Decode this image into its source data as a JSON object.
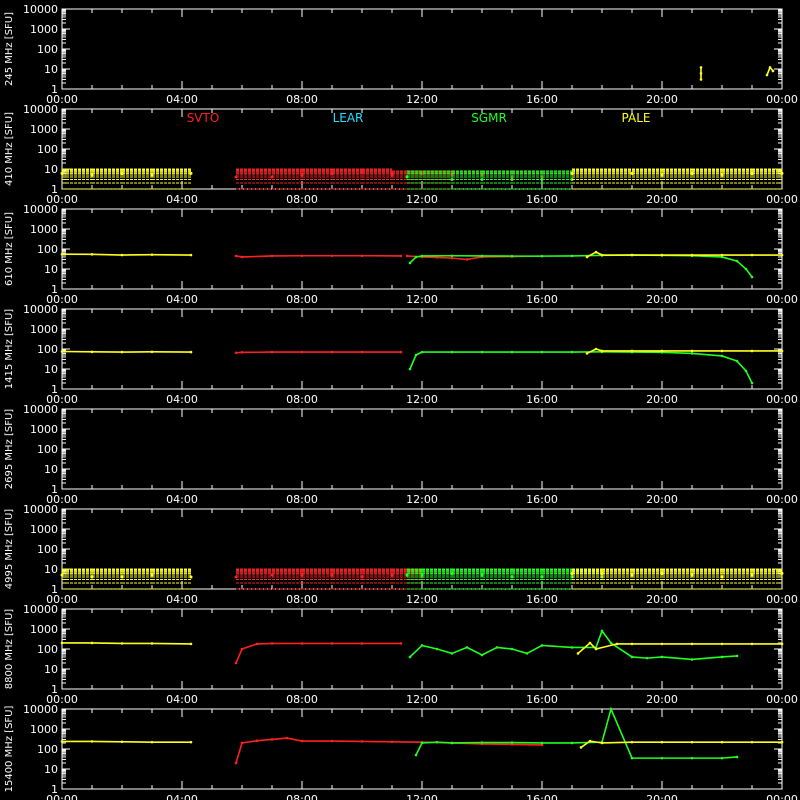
{
  "chart_data": {
    "type": "scatter",
    "x_ticks": [
      "00:00",
      "04:00",
      "08:00",
      "12:00",
      "16:00",
      "20:00",
      "00:00"
    ],
    "y_ticks": [
      "1",
      "10",
      "100",
      "1000",
      "10000"
    ],
    "ylim": [
      1,
      10000
    ],
    "y_scale": "log",
    "xlim_hours": [
      0,
      24
    ],
    "legend": [
      {
        "name": "SVTO",
        "color": "#ff2020"
      },
      {
        "name": "LEAR",
        "color": "#20e0ff"
      },
      {
        "name": "SGMR",
        "color": "#20ff20"
      },
      {
        "name": "PALE",
        "color": "#ffff20"
      }
    ],
    "panels": [
      {
        "ylabel": "245 MHz [SFU]",
        "segments": [
          {
            "station": "PALE",
            "x": [
              21.3,
              21.3,
              21.3
            ],
            "y": [
              3,
              6,
              12
            ]
          },
          {
            "station": "PALE",
            "x": [
              23.5,
              23.6,
              23.7
            ],
            "y": [
              5,
              12,
              8
            ]
          }
        ]
      },
      {
        "ylabel": "410 MHz [SFU]",
        "show_legend": true,
        "segments": [
          {
            "station": "PALE",
            "x": [
              0,
              1,
              2,
              3,
              4.3
            ],
            "y": [
              6,
              5,
              6,
              5,
              6
            ],
            "band": [
              1,
              10
            ]
          },
          {
            "station": "SVTO",
            "x": [
              5.8,
              7,
              8,
              9,
              10,
              11
            ],
            "y": [
              4,
              4,
              5,
              6,
              7,
              6
            ],
            "band": [
              1,
              10
            ]
          },
          {
            "station": "SVTO",
            "x": [
              11,
              12,
              13,
              14,
              15,
              16
            ],
            "y": [
              5,
              6,
              5,
              5,
              4,
              4
            ],
            "band": [
              1,
              8
            ]
          },
          {
            "station": "SGMR",
            "x": [
              11.5,
              13,
              14,
              15,
              16,
              17
            ],
            "y": [
              4,
              3,
              3,
              3,
              3,
              3
            ],
            "band": [
              1,
              8
            ]
          },
          {
            "station": "PALE",
            "x": [
              17,
              19,
              20,
              21,
              22,
              23,
              24
            ],
            "y": [
              6,
              6,
              5,
              6,
              5,
              6,
              6
            ],
            "band": [
              1,
              10
            ]
          }
        ]
      },
      {
        "ylabel": "610 MHz [SFU]",
        "segments": [
          {
            "station": "PALE",
            "x": [
              0,
              1,
              2,
              3,
              4.3
            ],
            "y": [
              55,
              54,
              50,
              52,
              50
            ]
          },
          {
            "station": "SVTO",
            "x": [
              5.8,
              6,
              7,
              8,
              9,
              10,
              11.3
            ],
            "y": [
              45,
              40,
              45,
              46,
              46,
              46,
              45
            ]
          },
          {
            "station": "SVTO",
            "x": [
              11.5,
              12,
              12.5,
              13,
              13.5,
              14,
              15,
              16
            ],
            "y": [
              45,
              40,
              38,
              35,
              30,
              40,
              42,
              44
            ]
          },
          {
            "station": "SGMR",
            "x": [
              11.6,
              11.8,
              12,
              13,
              14,
              15,
              16,
              17,
              18,
              19,
              20,
              21,
              22,
              22.5,
              22.8,
              23
            ],
            "y": [
              20,
              40,
              45,
              46,
              45,
              44,
              44,
              45,
              48,
              50,
              48,
              46,
              40,
              25,
              10,
              4
            ]
          },
          {
            "station": "PALE",
            "x": [
              17.5,
              17.8,
              18,
              19,
              20,
              21,
              22,
              23,
              24
            ],
            "y": [
              40,
              70,
              50,
              50,
              50,
              50,
              50,
              50,
              50
            ]
          }
        ]
      },
      {
        "ylabel": "1415 MHz [SFU]",
        "segments": [
          {
            "station": "PALE",
            "x": [
              0,
              1,
              2,
              3,
              4.3
            ],
            "y": [
              75,
              72,
              70,
              72,
              70
            ]
          },
          {
            "station": "SVTO",
            "x": [
              5.8,
              6,
              7,
              8,
              9,
              10,
              11.3
            ],
            "y": [
              65,
              68,
              70,
              70,
              70,
              70,
              70
            ]
          },
          {
            "station": "SGMR",
            "x": [
              11.6,
              11.8,
              12,
              13,
              14,
              15,
              16,
              17,
              18,
              19,
              20,
              21,
              22,
              22.5,
              22.8,
              23
            ],
            "y": [
              10,
              50,
              70,
              70,
              70,
              70,
              70,
              70,
              72,
              70,
              68,
              60,
              45,
              25,
              8,
              2
            ]
          },
          {
            "station": "PALE",
            "x": [
              17.5,
              17.8,
              18,
              19,
              20,
              21,
              22,
              23,
              24
            ],
            "y": [
              60,
              100,
              80,
              80,
              80,
              80,
              80,
              80,
              80
            ]
          }
        ]
      },
      {
        "ylabel": "2695 MHz [SFU]",
        "segments": []
      },
      {
        "ylabel": "4995 MHz [SFU]",
        "segments": [
          {
            "station": "PALE",
            "x": [
              0,
              1,
              2,
              3,
              4.3
            ],
            "y": [
              5,
              4,
              4,
              5,
              4
            ],
            "band": [
              1,
              10
            ]
          },
          {
            "station": "SVTO",
            "x": [
              5.8,
              7,
              8,
              9,
              10,
              11,
              12
            ],
            "y": [
              4,
              5,
              5,
              5,
              4,
              5,
              4
            ],
            "band": [
              1,
              10
            ]
          },
          {
            "station": "SGMR",
            "x": [
              11.5,
              12,
              13,
              14,
              15,
              16,
              17,
              18
            ],
            "y": [
              5,
              5,
              6,
              5,
              4,
              4,
              4,
              4
            ],
            "band": [
              1,
              10
            ]
          },
          {
            "station": "PALE",
            "x": [
              17,
              18,
              19,
              20,
              21,
              22,
              23,
              24
            ],
            "y": [
              6,
              6,
              5,
              6,
              5,
              4,
              5,
              6
            ],
            "band": [
              1,
              10
            ]
          }
        ]
      },
      {
        "ylabel": "8800 MHz [SFU]",
        "segments": [
          {
            "station": "PALE",
            "x": [
              0,
              1,
              2,
              3,
              4.3
            ],
            "y": [
              200,
              200,
              190,
              190,
              180
            ]
          },
          {
            "station": "SVTO",
            "x": [
              5.8,
              6,
              6.5,
              7,
              8,
              9,
              10,
              11.3
            ],
            "y": [
              20,
              100,
              180,
              190,
              190,
              190,
              190,
              190
            ]
          },
          {
            "station": "SGMR",
            "x": [
              11.6,
              12,
              12.5,
              13,
              13.5,
              14,
              14.5,
              15,
              15.5,
              16,
              17,
              17.8,
              18,
              18.3,
              19,
              19.5,
              20,
              21,
              22,
              22.5
            ],
            "y": [
              40,
              150,
              100,
              60,
              120,
              50,
              120,
              100,
              60,
              150,
              120,
              120,
              800,
              200,
              40,
              35,
              40,
              30,
              40,
              45
            ]
          },
          {
            "station": "PALE",
            "x": [
              17.2,
              17.6,
              17.8,
              18.5,
              19,
              20,
              21,
              22,
              23,
              24
            ],
            "y": [
              60,
              200,
              100,
              180,
              180,
              180,
              180,
              180,
              180,
              180
            ]
          }
        ]
      },
      {
        "ylabel": "15400 MHz [SFU]",
        "segments": [
          {
            "station": "PALE",
            "x": [
              0,
              1,
              2,
              3,
              4.3
            ],
            "y": [
              240,
              240,
              230,
              220,
              220
            ]
          },
          {
            "station": "SVTO",
            "x": [
              5.8,
              6,
              6.5,
              7,
              7.5,
              8,
              9,
              10,
              11,
              12,
              13,
              14,
              15,
              16
            ],
            "y": [
              20,
              200,
              260,
              300,
              350,
              250,
              250,
              240,
              230,
              220,
              200,
              180,
              170,
              160
            ]
          },
          {
            "station": "SGMR",
            "x": [
              11.8,
              12,
              12.5,
              13,
              14,
              15,
              16,
              17,
              18,
              18.3,
              19,
              20,
              21,
              22,
              22.5
            ],
            "y": [
              50,
              200,
              220,
              200,
              210,
              210,
              200,
              200,
              220,
              10000,
              35,
              35,
              35,
              35,
              40
            ]
          },
          {
            "station": "PALE",
            "x": [
              17.3,
              17.6,
              18,
              19,
              20,
              21,
              22,
              23,
              24
            ],
            "y": [
              120,
              250,
              200,
              220,
              220,
              220,
              220,
              220,
              220
            ]
          }
        ]
      }
    ]
  }
}
